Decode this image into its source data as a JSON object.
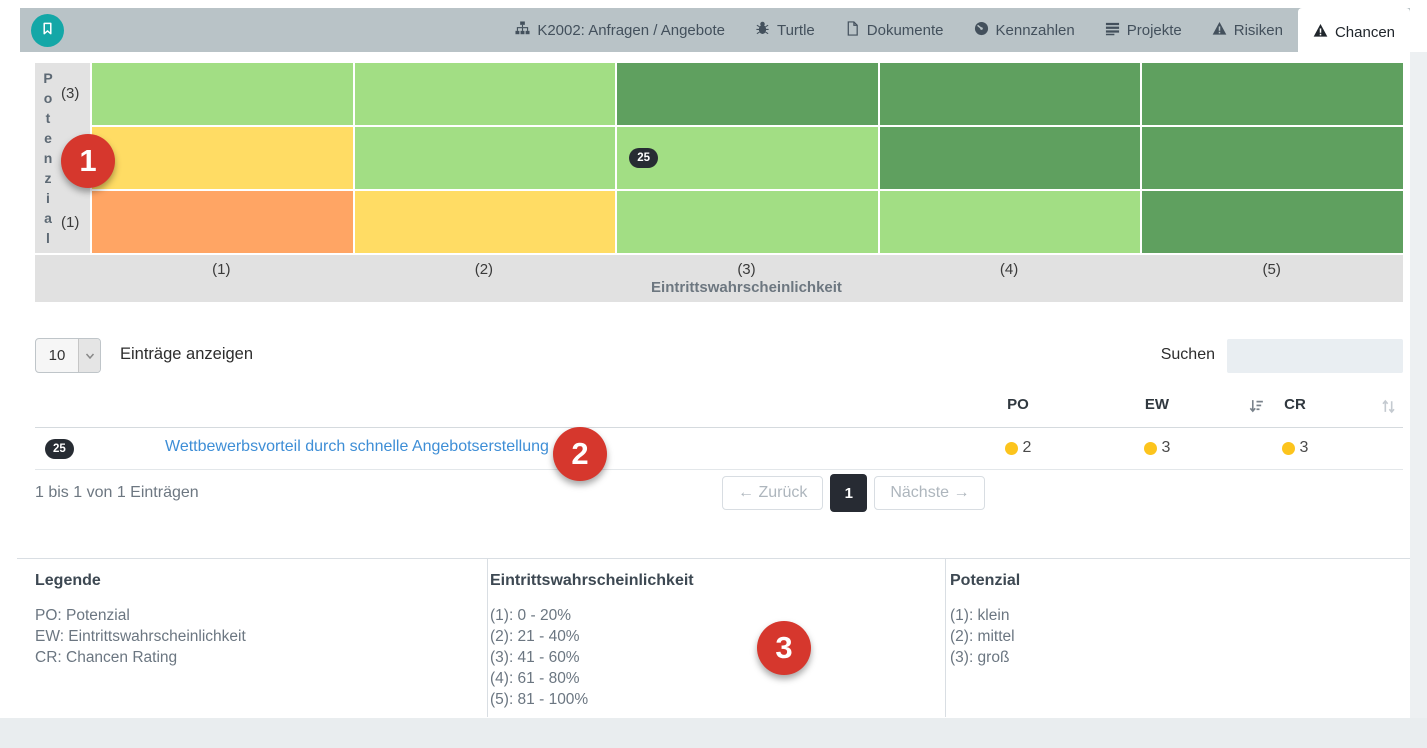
{
  "nav": {
    "brand_icon": "bookmark-icon",
    "items": [
      {
        "label": "K2002: Anfragen / Angebote",
        "icon": "sitemap-icon",
        "active": false
      },
      {
        "label": "Turtle",
        "icon": "bug-icon",
        "active": false
      },
      {
        "label": "Dokumente",
        "icon": "document-icon",
        "active": false
      },
      {
        "label": "Kennzahlen",
        "icon": "gauge-icon",
        "active": false
      },
      {
        "label": "Projekte",
        "icon": "list-icon",
        "active": false
      },
      {
        "label": "Risiken",
        "icon": "warning-icon",
        "active": false
      },
      {
        "label": "Chancen",
        "icon": "warning-icon",
        "active": true
      }
    ]
  },
  "matrix": {
    "y_axis_label": "Potenzial",
    "y_tick_top": "(3)",
    "y_tick_bottom": "(1)",
    "x_axis_label": "Eintrittswahrscheinlichkeit",
    "x_ticks": [
      "(1)",
      "(2)",
      "(3)",
      "(4)",
      "(5)"
    ],
    "colors": {
      "low": "#ffa564",
      "medium": "#ffdc64",
      "good": "#a2de84",
      "best": "#5fa05f"
    },
    "cells": [
      [
        "good",
        "good",
        "best",
        "best",
        "best"
      ],
      [
        "medium",
        "good",
        "good",
        "best",
        "best"
      ],
      [
        "low",
        "medium",
        "good",
        "good",
        "best"
      ]
    ],
    "marker": {
      "value": "25",
      "row": 1,
      "col": 2
    }
  },
  "table_controls": {
    "page_size": "10",
    "entries_label": "Einträge anzeigen",
    "search_label": "Suchen",
    "search_value": ""
  },
  "table": {
    "columns": {
      "po": "PO",
      "ew": "EW",
      "cr": "CR"
    },
    "sort_icons": [
      "sort-amount-icon",
      "sort-both-icon"
    ],
    "row": {
      "id_badge": "25",
      "title": "Wettbewerbsvorteil durch schnelle Angebotserstellung",
      "po": "2",
      "ew": "3",
      "cr": "3",
      "dot_color": "#fcc41d"
    },
    "info": "1 bis 1 von 1 Einträgen",
    "pagination": {
      "prev": "← Zurück",
      "page": "1",
      "next": "Nächste →"
    }
  },
  "legend": {
    "col1": {
      "title": "Legende",
      "lines": [
        "PO: Potenzial",
        "EW: Eintrittswahrscheinlichkeit",
        "CR: Chancen Rating"
      ]
    },
    "col2": {
      "title": "Eintrittswahrscheinlichkeit",
      "lines": [
        "(1): 0 - 20%",
        "(2): 21 - 40%",
        "(3): 41 - 60%",
        "(4): 61 - 80%",
        "(5): 81 - 100%"
      ]
    },
    "col3": {
      "title": "Potenzial",
      "lines": [
        "(1): klein",
        "(2): mittel",
        "(3): groß"
      ]
    }
  },
  "annotations": [
    "1",
    "2",
    "3"
  ],
  "palette": {
    "brand_teal": "#14a7a7",
    "navbar_gray": "#b9c3c7",
    "annotation_red": "#d6372d",
    "link_blue": "#3e8ed6",
    "dark_badge": "#272c33",
    "dot_yellow": "#fcc41d"
  }
}
